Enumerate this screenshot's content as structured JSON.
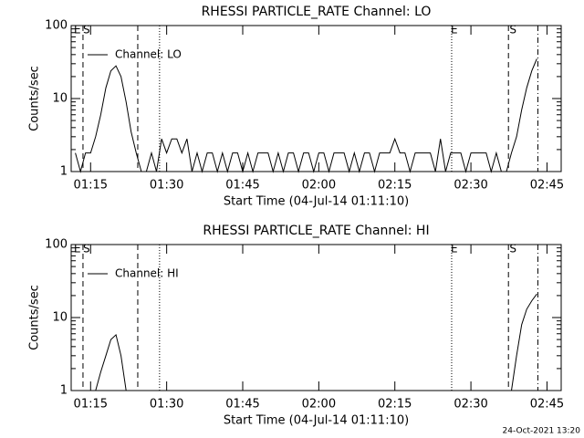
{
  "chart_data": [
    {
      "type": "line",
      "title": "RHESSI PARTICLE_RATE Channel: LO",
      "xlabel": "Start Time (04-Jul-14 01:11:10)",
      "ylabel": "Counts/sec",
      "ylog": true,
      "xlim": [
        71.17,
        167.8
      ],
      "ylim": [
        1,
        100
      ],
      "yticks": [
        1,
        10,
        100
      ],
      "xticks": [
        {
          "value": 75,
          "label": "01:15"
        },
        {
          "value": 90,
          "label": "01:30"
        },
        {
          "value": 105,
          "label": "01:45"
        },
        {
          "value": 120,
          "label": "02:00"
        },
        {
          "value": 135,
          "label": "02:15"
        },
        {
          "value": 150,
          "label": "02:30"
        },
        {
          "value": 165,
          "label": "02:45"
        }
      ],
      "vlines": [
        {
          "x": 73.5,
          "style": "dashed"
        },
        {
          "x": 84.3,
          "style": "dashed"
        },
        {
          "x": 88.6,
          "style": "dotted"
        },
        {
          "x": 146.2,
          "style": "dotted"
        },
        {
          "x": 157.4,
          "style": "dashed"
        },
        {
          "x": 163.2,
          "style": "dashdot"
        }
      ],
      "annotations": [
        {
          "x": 72.4,
          "label": "E"
        },
        {
          "x": 74.2,
          "label": "S"
        },
        {
          "x": 146.7,
          "label": "E"
        },
        {
          "x": 158.3,
          "label": "S"
        }
      ],
      "x": [
        72,
        73,
        74,
        75,
        76,
        77,
        78,
        79,
        80,
        81,
        82,
        83,
        84,
        85,
        86,
        87,
        88,
        89,
        90,
        91,
        92,
        93,
        94,
        95,
        96,
        97,
        98,
        99,
        100,
        101,
        102,
        103,
        104,
        105,
        106,
        107,
        108,
        109,
        110,
        111,
        112,
        113,
        114,
        115,
        116,
        117,
        118,
        119,
        120,
        121,
        122,
        123,
        124,
        125,
        126,
        127,
        128,
        129,
        130,
        131,
        132,
        133,
        134,
        135,
        136,
        137,
        138,
        139,
        140,
        141,
        142,
        143,
        144,
        145,
        146,
        147,
        148,
        149,
        150,
        151,
        152,
        153,
        154,
        155,
        156,
        157,
        158,
        159,
        160,
        161,
        162,
        163
      ],
      "series": [
        {
          "name": "Channel: LO",
          "color": "#000000",
          "values": [
            1.8,
            1,
            1.8,
            1.8,
            3,
            6,
            14,
            24,
            28,
            20,
            9,
            3.5,
            1.8,
            1,
            1,
            1.8,
            1,
            2.8,
            1.8,
            2.8,
            2.8,
            1.8,
            2.8,
            1,
            1.8,
            1,
            1.8,
            1.8,
            1,
            1.8,
            1,
            1.8,
            1.8,
            1,
            1.8,
            1,
            1.8,
            1.8,
            1.8,
            1,
            1.8,
            1,
            1.8,
            1.8,
            1,
            1.8,
            1.8,
            1,
            1.8,
            1.8,
            1,
            1.8,
            1.8,
            1.8,
            1,
            1.8,
            1,
            1.8,
            1.8,
            1,
            1.8,
            1.8,
            1.8,
            2.8,
            1.8,
            1.8,
            1,
            1.8,
            1.8,
            1.8,
            1.8,
            1,
            2.8,
            1,
            1.8,
            1.8,
            1.8,
            1,
            1.8,
            1.8,
            1.8,
            1.8,
            1,
            1.8,
            1,
            1,
            1.8,
            3,
            7,
            14,
            24,
            35
          ]
        }
      ]
    },
    {
      "type": "line",
      "title": "RHESSI PARTICLE_RATE Channel: HI",
      "xlabel": "Start Time (04-Jul-14 01:11:10)",
      "ylabel": "Counts/sec",
      "ylog": true,
      "xlim": [
        71.17,
        167.8
      ],
      "ylim": [
        1,
        100
      ],
      "yticks": [
        1,
        10,
        100
      ],
      "xticks": [
        {
          "value": 75,
          "label": "01:15"
        },
        {
          "value": 90,
          "label": "01:30"
        },
        {
          "value": 105,
          "label": "01:45"
        },
        {
          "value": 120,
          "label": "02:00"
        },
        {
          "value": 135,
          "label": "02:15"
        },
        {
          "value": 150,
          "label": "02:30"
        },
        {
          "value": 165,
          "label": "02:45"
        }
      ],
      "vlines": [
        {
          "x": 73.5,
          "style": "dashed"
        },
        {
          "x": 84.3,
          "style": "dashed"
        },
        {
          "x": 88.6,
          "style": "dotted"
        },
        {
          "x": 146.2,
          "style": "dotted"
        },
        {
          "x": 157.4,
          "style": "dashed"
        },
        {
          "x": 163.2,
          "style": "dashdot"
        }
      ],
      "annotations": [
        {
          "x": 72.4,
          "label": "E"
        },
        {
          "x": 74.2,
          "label": "S"
        },
        {
          "x": 146.7,
          "label": "E"
        },
        {
          "x": 158.3,
          "label": "S"
        }
      ],
      "x": [
        72,
        73,
        74,
        75,
        76,
        77,
        78,
        79,
        80,
        81,
        82,
        83,
        84,
        85,
        86,
        87,
        88,
        89,
        90,
        91,
        92,
        93,
        94,
        95,
        96,
        97,
        98,
        99,
        100,
        101,
        102,
        103,
        104,
        105,
        106,
        107,
        108,
        109,
        110,
        111,
        112,
        113,
        114,
        115,
        116,
        117,
        118,
        119,
        120,
        121,
        122,
        123,
        124,
        125,
        126,
        127,
        128,
        129,
        130,
        131,
        132,
        133,
        134,
        135,
        136,
        137,
        138,
        139,
        140,
        141,
        142,
        143,
        144,
        145,
        146,
        147,
        148,
        149,
        150,
        151,
        152,
        153,
        154,
        155,
        156,
        157,
        158,
        159,
        160,
        161,
        162,
        163
      ],
      "series": [
        {
          "name": "Channel: HI",
          "color": "#000000",
          "values": [
            null,
            null,
            null,
            null,
            1,
            1.8,
            3,
            5,
            5.8,
            3,
            1,
            null,
            null,
            null,
            null,
            null,
            null,
            null,
            null,
            null,
            null,
            null,
            null,
            null,
            null,
            null,
            null,
            null,
            null,
            null,
            null,
            null,
            null,
            null,
            null,
            null,
            null,
            null,
            null,
            null,
            null,
            null,
            null,
            null,
            null,
            null,
            null,
            null,
            null,
            null,
            null,
            null,
            null,
            null,
            null,
            null,
            null,
            null,
            null,
            null,
            null,
            null,
            null,
            null,
            null,
            null,
            null,
            null,
            null,
            null,
            null,
            null,
            null,
            null,
            null,
            null,
            null,
            null,
            null,
            null,
            null,
            null,
            null,
            null,
            null,
            null,
            1,
            3,
            8,
            13,
            17,
            21
          ]
        }
      ]
    }
  ],
  "footer": "24-Oct-2021 13:20"
}
